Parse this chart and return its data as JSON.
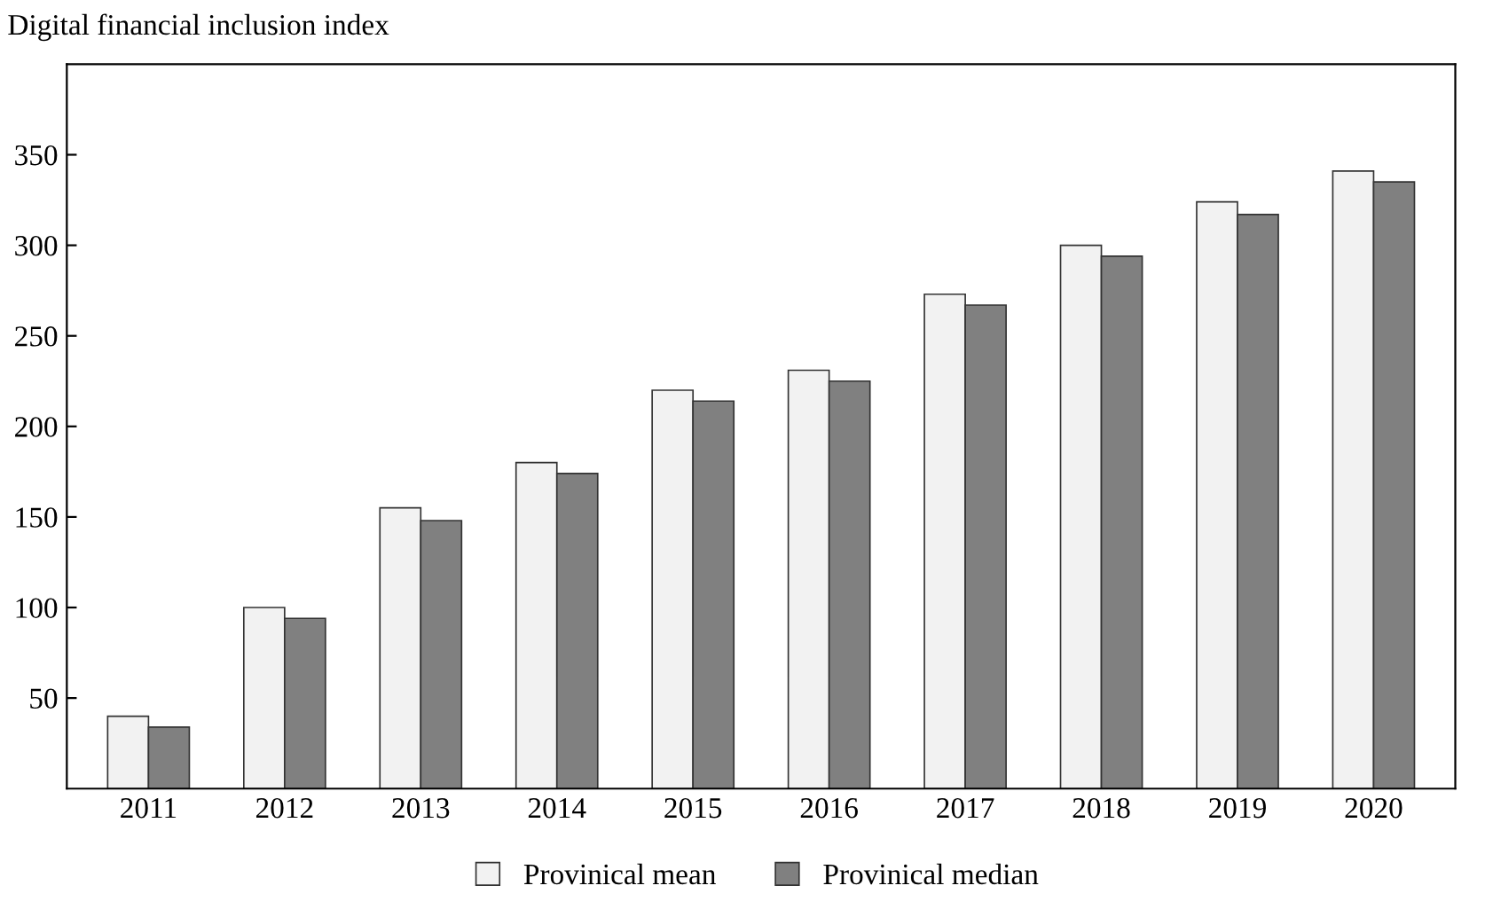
{
  "chart_data": {
    "type": "bar",
    "ylabel": "Digital financial inclusion index",
    "categories": [
      "2011",
      "2012",
      "2013",
      "2014",
      "2015",
      "2016",
      "2017",
      "2018",
      "2019",
      "2020"
    ],
    "series": [
      {
        "name": "Provinical mean",
        "color": "#f2f2f2",
        "values": [
          40,
          100,
          155,
          180,
          220,
          231,
          273,
          300,
          324,
          341
        ]
      },
      {
        "name": "Provinical median",
        "color": "#808080",
        "values": [
          34,
          94,
          148,
          174,
          214,
          225,
          267,
          294,
          317,
          335
        ]
      }
    ],
    "ylim": [
      0,
      400
    ],
    "yticks": [
      50,
      100,
      150,
      200,
      250,
      300,
      350
    ],
    "grid": false,
    "legend": "bottom"
  }
}
